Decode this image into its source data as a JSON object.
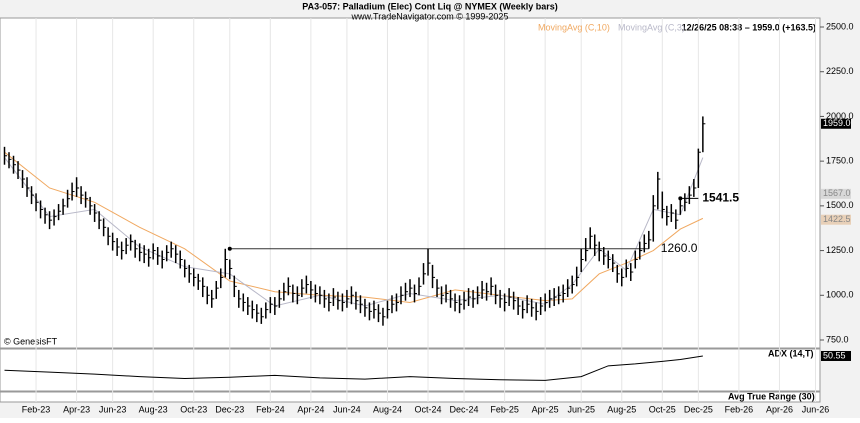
{
  "chart_data": {
    "type": "ohlc",
    "title": "PA3-057:  Palladium (Elec) Cont Liq @ NYMEX  (Weekly bars)",
    "subtitle": "www.TradeNavigator.com © 1999-2025",
    "quote": "12/26/25 08:38 – 1959.0 (+163.5)",
    "source": "© GenesisFT",
    "color": "#000000",
    "high": [
      1830,
      1800,
      1780,
      1750,
      1700,
      1660,
      1610,
      1570,
      1530,
      1490,
      1470,
      1480,
      1510,
      1540,
      1590,
      1630,
      1660,
      1610,
      1580,
      1550,
      1510,
      1470,
      1430,
      1380,
      1350,
      1320,
      1300,
      1320,
      1340,
      1310,
      1290,
      1280,
      1260,
      1290,
      1270,
      1250,
      1280,
      1300,
      1280,
      1250,
      1200,
      1170,
      1150,
      1120,
      1100,
      1050,
      1030,
      1080,
      1150,
      1260,
      1200,
      1110,
      1030,
      1010,
      990,
      970,
      950,
      930,
      960,
      990,
      990,
      1030,
      1070,
      1100,
      1060,
      1050,
      1090,
      1110,
      1080,
      1060,
      1050,
      1030,
      1010,
      1040,
      1020,
      1010,
      1030,
      1050,
      1020,
      1000,
      980,
      960,
      970,
      950,
      930,
      970,
      1000,
      1010,
      1050,
      1070,
      1090,
      1060,
      1100,
      1180,
      1260,
      1170,
      1090,
      1050,
      1060,
      1030,
      1010,
      1000,
      1020,
      1040,
      1030,
      1050,
      1080,
      1070,
      1100,
      1060,
      1030,
      1010,
      1040,
      1020,
      990,
      970,
      1000,
      980,
      960,
      990,
      1010,
      1030,
      1040,
      1050,
      1060,
      1090,
      1110,
      1160,
      1260,
      1320,
      1380,
      1340,
      1300,
      1270,
      1250,
      1230,
      1170,
      1150,
      1200,
      1180,
      1250,
      1300,
      1340,
      1360,
      1560,
      1690,
      1580,
      1500,
      1510,
      1480,
      1550,
      1570,
      1610,
      1650,
      1820,
      2000
    ],
    "low": [
      1730,
      1710,
      1680,
      1650,
      1600,
      1550,
      1510,
      1470,
      1430,
      1400,
      1370,
      1390,
      1420,
      1450,
      1490,
      1530,
      1550,
      1510,
      1490,
      1450,
      1410,
      1370,
      1330,
      1280,
      1250,
      1220,
      1200,
      1230,
      1250,
      1210,
      1190,
      1180,
      1160,
      1200,
      1170,
      1150,
      1190,
      1210,
      1180,
      1150,
      1100,
      1070,
      1050,
      1030,
      990,
      950,
      930,
      980,
      1040,
      1100,
      1090,
      990,
      930,
      910,
      890,
      870,
      850,
      840,
      870,
      900,
      890,
      930,
      970,
      1000,
      960,
      950,
      990,
      1010,
      980,
      960,
      950,
      930,
      910,
      940,
      920,
      910,
      930,
      950,
      920,
      900,
      880,
      860,
      870,
      850,
      830,
      870,
      900,
      910,
      950,
      970,
      990,
      960,
      1000,
      1060,
      1110,
      1040,
      990,
      950,
      960,
      930,
      910,
      900,
      920,
      940,
      930,
      950,
      980,
      970,
      1000,
      950,
      930,
      910,
      940,
      920,
      890,
      870,
      900,
      880,
      860,
      890,
      910,
      930,
      940,
      950,
      960,
      990,
      1010,
      1050,
      1130,
      1190,
      1260,
      1220,
      1190,
      1170,
      1150,
      1130,
      1070,
      1050,
      1100,
      1080,
      1150,
      1200,
      1240,
      1260,
      1300,
      1480,
      1430,
      1390,
      1410,
      1370,
      1450,
      1470,
      1510,
      1550,
      1600,
      1800
    ],
    "close": [
      1780,
      1760,
      1730,
      1700,
      1650,
      1600,
      1560,
      1520,
      1480,
      1450,
      1420,
      1440,
      1470,
      1500,
      1540,
      1580,
      1600,
      1560,
      1540,
      1500,
      1460,
      1420,
      1380,
      1330,
      1300,
      1270,
      1250,
      1280,
      1300,
      1260,
      1240,
      1230,
      1210,
      1250,
      1220,
      1200,
      1240,
      1260,
      1230,
      1200,
      1150,
      1120,
      1100,
      1080,
      1050,
      1000,
      980,
      1040,
      1100,
      1200,
      1150,
      1050,
      980,
      960,
      940,
      920,
      900,
      880,
      920,
      950,
      940,
      980,
      1020,
      1050,
      1010,
      1000,
      1040,
      1060,
      1030,
      1010,
      1000,
      980,
      960,
      990,
      970,
      960,
      980,
      1000,
      970,
      950,
      930,
      910,
      920,
      900,
      880,
      920,
      950,
      960,
      1000,
      1020,
      1040,
      1010,
      1050,
      1120,
      1180,
      1100,
      1040,
      1000,
      1010,
      980,
      960,
      950,
      970,
      990,
      980,
      1000,
      1030,
      1020,
      1050,
      1000,
      980,
      960,
      990,
      970,
      940,
      920,
      950,
      930,
      910,
      940,
      960,
      980,
      990,
      1000,
      1010,
      1040,
      1060,
      1100,
      1200,
      1250,
      1330,
      1280,
      1250,
      1220,
      1200,
      1180,
      1120,
      1100,
      1150,
      1130,
      1200,
      1250,
      1290,
      1310,
      1500,
      1650,
      1480,
      1440,
      1460,
      1420,
      1500,
      1520,
      1560,
      1600,
      1800,
      1959
    ],
    "xlim": [
      -1,
      181
    ],
    "xticks": [
      {
        "value": 7,
        "label": "Feb-23"
      },
      {
        "value": 16,
        "label": "Apr-23"
      },
      {
        "value": 24,
        "label": "Jun-23"
      },
      {
        "value": 33,
        "label": "Aug-23"
      },
      {
        "value": 42,
        "label": "Oct-23"
      },
      {
        "value": 50,
        "label": "Dec-23"
      },
      {
        "value": 59,
        "label": "Feb-24"
      },
      {
        "value": 68,
        "label": "Apr-24"
      },
      {
        "value": 76,
        "label": "Jun-24"
      },
      {
        "value": 85,
        "label": "Aug-24"
      },
      {
        "value": 94,
        "label": "Oct-24"
      },
      {
        "value": 102,
        "label": "Dec-24"
      },
      {
        "value": 111,
        "label": "Feb-25"
      },
      {
        "value": 120,
        "label": "Apr-25"
      },
      {
        "value": 128,
        "label": "Jun-25"
      },
      {
        "value": 137,
        "label": "Aug-25"
      },
      {
        "value": 146,
        "label": "Oct-25"
      },
      {
        "value": 154,
        "label": "Dec-25"
      },
      {
        "value": 163,
        "label": "Feb-26"
      },
      {
        "value": 172,
        "label": "Apr-26"
      },
      {
        "value": 180,
        "label": "Jun-26"
      }
    ],
    "ylim": [
      750,
      2500
    ],
    "yticks": [
      {
        "value": 750,
        "label": "750.0"
      },
      {
        "value": 1000,
        "label": "1000.0"
      },
      {
        "value": 1250,
        "label": "1250.0"
      },
      {
        "value": 1500,
        "label": "1500.0"
      },
      {
        "value": 1750,
        "label": "1750.0"
      },
      {
        "value": 2000,
        "label": "2000.0"
      },
      {
        "value": 2250,
        "label": "2250.0"
      },
      {
        "value": 2500,
        "label": "2500.0"
      }
    ],
    "moving_averages": [
      {
        "name": "MovingAvg (C,10)",
        "color": "#f0a860",
        "x": [
          0,
          10,
          20,
          30,
          40,
          50,
          60,
          70,
          80,
          90,
          100,
          110,
          120,
          126,
          132,
          138,
          144,
          150,
          155
        ],
        "values": [
          1800,
          1600,
          1520,
          1380,
          1260,
          1080,
          1020,
          1000,
          990,
          960,
          1030,
          1000,
          970,
          980,
          1120,
          1180,
          1250,
          1370,
          1430
        ]
      },
      {
        "name": "MovingAvg (C,3)",
        "color": "#b8b8c8",
        "x": [
          0,
          10,
          20,
          30,
          40,
          50,
          60,
          70,
          80,
          90,
          100,
          110,
          120,
          126,
          132,
          138,
          144,
          150,
          155
        ],
        "values": [
          1770,
          1440,
          1480,
          1270,
          1160,
          1120,
          940,
          1000,
          940,
          1010,
          970,
          1000,
          950,
          1060,
          1260,
          1140,
          1480,
          1450,
          1770
        ]
      }
    ],
    "hline": {
      "value": 1260,
      "label": "1260.0",
      "x": [
        50,
        143
      ]
    },
    "marker": {
      "value": 1541.5,
      "label": "1541.5",
      "x": [
        150,
        154
      ]
    },
    "axis_flags": [
      {
        "value": 1959,
        "label": "1959.0",
        "color": "#000000"
      },
      {
        "value": 1567,
        "label": "1567.0",
        "color": "#d8d8d8"
      },
      {
        "value": 1422.5,
        "label": "1422.5",
        "color": "#e8d0b8"
      }
    ],
    "adx": {
      "name": "ADX (14,T)",
      "ylim": [
        0,
        60
      ],
      "x": [
        0,
        10,
        20,
        30,
        40,
        50,
        60,
        70,
        80,
        90,
        100,
        110,
        120,
        128,
        134,
        140,
        146,
        150,
        155
      ],
      "values": [
        28,
        25,
        22,
        18,
        15,
        17,
        20,
        16,
        14,
        18,
        15,
        13,
        12,
        18,
        35,
        38,
        42,
        45,
        50.55
      ],
      "value_label": "50.55"
    },
    "atr": {
      "name": "Avg True Range (30)"
    }
  }
}
